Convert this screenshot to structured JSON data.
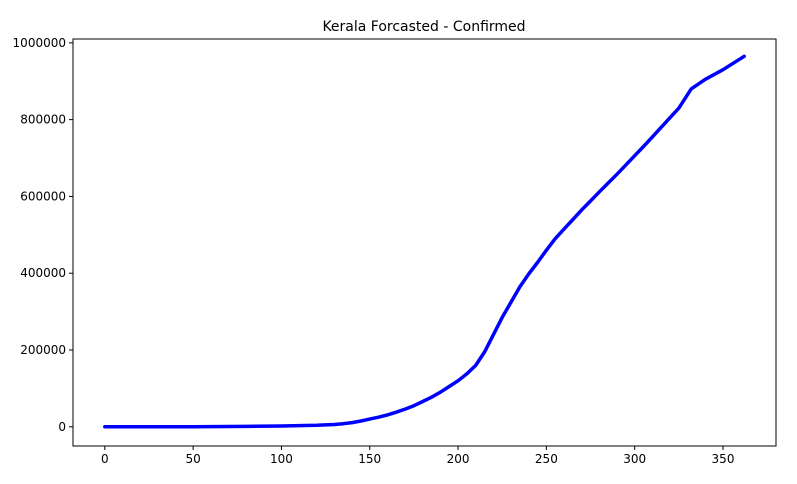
{
  "chart_data": {
    "type": "line",
    "title": "Kerala Forcasted - Confirmed",
    "xlabel": "",
    "ylabel": "",
    "xlim": [
      -18,
      380
    ],
    "ylim": [
      -50000,
      1010000
    ],
    "xticks": [
      0,
      50,
      100,
      150,
      200,
      250,
      300,
      350
    ],
    "xtick_labels": [
      "0",
      "50",
      "100",
      "150",
      "200",
      "250",
      "300",
      "350"
    ],
    "yticks": [
      0,
      200000,
      400000,
      600000,
      800000,
      1000000
    ],
    "ytick_labels": [
      "0",
      "200000",
      "400000",
      "600000",
      "800000",
      "1000000"
    ],
    "grid": false,
    "legend": "none",
    "series": [
      {
        "color": "#0000ff",
        "x": [
          0,
          50,
          80,
          100,
          120,
          130,
          135,
          140,
          145,
          150,
          155,
          160,
          165,
          170,
          175,
          180,
          185,
          190,
          195,
          200,
          205,
          210,
          215,
          220,
          225,
          230,
          235,
          240,
          245,
          250,
          255,
          260,
          265,
          270,
          275,
          280,
          285,
          290,
          295,
          300,
          305,
          310,
          315,
          320,
          325,
          332,
          340,
          350,
          362
        ],
        "y": [
          0,
          0,
          1000,
          2000,
          4000,
          6000,
          8000,
          11000,
          15000,
          20000,
          25000,
          31000,
          38000,
          46000,
          55000,
          66000,
          77000,
          90000,
          105000,
          120000,
          138000,
          160000,
          195000,
          240000,
          285000,
          325000,
          365000,
          398000,
          428000,
          460000,
          490000,
          515000,
          540000,
          565000,
          588000,
          612000,
          635000,
          658000,
          682000,
          706000,
          730000,
          755000,
          780000,
          805000,
          830000,
          880000,
          905000,
          930000,
          965000
        ]
      }
    ]
  }
}
